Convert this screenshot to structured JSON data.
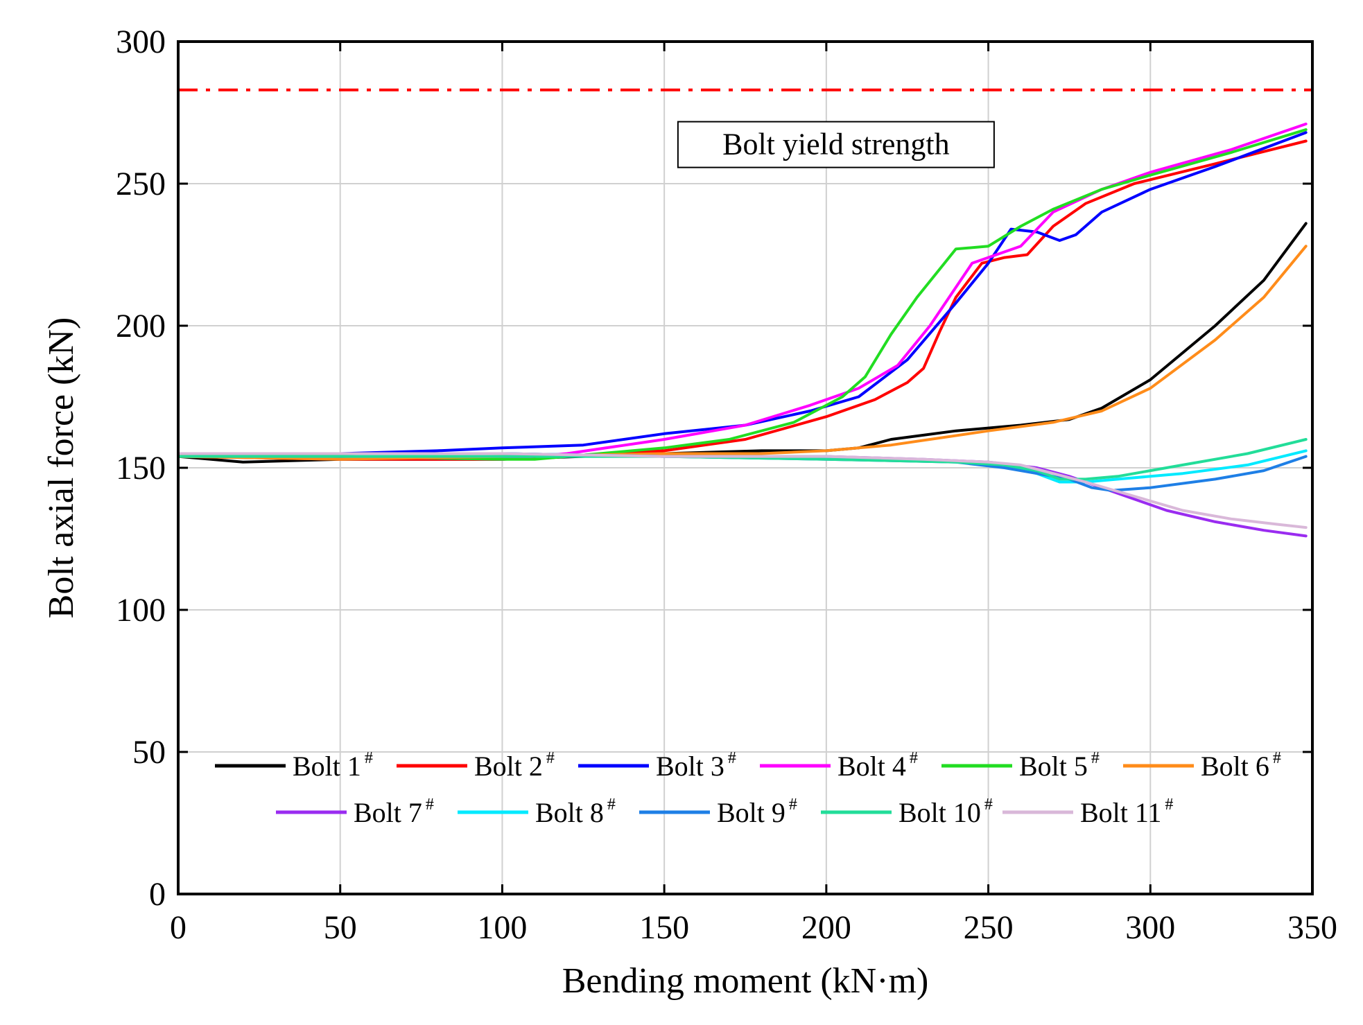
{
  "chart_data": {
    "type": "line",
    "title": "",
    "xlabel": "Bending moment (kN·m)",
    "ylabel": "Bolt axial force (kN)",
    "xlim": [
      0,
      350
    ],
    "ylim": [
      0,
      300
    ],
    "x_ticks": [
      0,
      50,
      100,
      150,
      200,
      250,
      300,
      350
    ],
    "y_ticks": [
      0,
      50,
      100,
      150,
      200,
      250,
      300
    ],
    "grid": true,
    "legend_position": "bottom, two rows",
    "legend_superscript": "#",
    "reference_line": {
      "label": "Bolt yield strength",
      "y": 283,
      "color": "#ff0000",
      "style": "dash-dot"
    },
    "series": [
      {
        "name": "Bolt 1",
        "color": "#000000",
        "points": [
          [
            0,
            154
          ],
          [
            20,
            152
          ],
          [
            50,
            153
          ],
          [
            100,
            153
          ],
          [
            150,
            155
          ],
          [
            180,
            156
          ],
          [
            200,
            156
          ],
          [
            210,
            157
          ],
          [
            220,
            160
          ],
          [
            240,
            163
          ],
          [
            260,
            165
          ],
          [
            275,
            167
          ],
          [
            285,
            171
          ],
          [
            300,
            181
          ],
          [
            320,
            200
          ],
          [
            335,
            216
          ],
          [
            348,
            236
          ]
        ]
      },
      {
        "name": "Bolt 2",
        "color": "#ff0000",
        "points": [
          [
            0,
            154
          ],
          [
            50,
            153
          ],
          [
            100,
            153
          ],
          [
            150,
            156
          ],
          [
            175,
            160
          ],
          [
            200,
            168
          ],
          [
            215,
            174
          ],
          [
            225,
            180
          ],
          [
            230,
            185
          ],
          [
            235,
            198
          ],
          [
            240,
            210
          ],
          [
            248,
            222
          ],
          [
            255,
            224
          ],
          [
            262,
            225
          ],
          [
            270,
            235
          ],
          [
            280,
            243
          ],
          [
            295,
            250
          ],
          [
            320,
            257
          ],
          [
            348,
            265
          ]
        ]
      },
      {
        "name": "Bolt 3",
        "color": "#0000ff",
        "points": [
          [
            0,
            155
          ],
          [
            50,
            155
          ],
          [
            80,
            156
          ],
          [
            100,
            157
          ],
          [
            125,
            158
          ],
          [
            150,
            162
          ],
          [
            175,
            165
          ],
          [
            195,
            170
          ],
          [
            210,
            175
          ],
          [
            225,
            188
          ],
          [
            240,
            208
          ],
          [
            250,
            222
          ],
          [
            257,
            234
          ],
          [
            265,
            233
          ],
          [
            272,
            230
          ],
          [
            277,
            232
          ],
          [
            285,
            240
          ],
          [
            300,
            248
          ],
          [
            320,
            256
          ],
          [
            348,
            268
          ]
        ]
      },
      {
        "name": "Bolt 4",
        "color": "#ff00ff",
        "points": [
          [
            0,
            155
          ],
          [
            50,
            154
          ],
          [
            100,
            153
          ],
          [
            120,
            155
          ],
          [
            150,
            160
          ],
          [
            175,
            165
          ],
          [
            195,
            172
          ],
          [
            210,
            178
          ],
          [
            222,
            186
          ],
          [
            232,
            200
          ],
          [
            245,
            222
          ],
          [
            260,
            228
          ],
          [
            270,
            240
          ],
          [
            285,
            248
          ],
          [
            300,
            254
          ],
          [
            325,
            262
          ],
          [
            348,
            271
          ]
        ]
      },
      {
        "name": "Bolt 5",
        "color": "#22dd22",
        "points": [
          [
            0,
            154
          ],
          [
            50,
            154
          ],
          [
            100,
            153
          ],
          [
            110,
            153
          ],
          [
            130,
            155
          ],
          [
            150,
            157
          ],
          [
            170,
            160
          ],
          [
            190,
            166
          ],
          [
            205,
            175
          ],
          [
            212,
            182
          ],
          [
            220,
            197
          ],
          [
            228,
            210
          ],
          [
            240,
            227
          ],
          [
            250,
            228
          ],
          [
            260,
            235
          ],
          [
            270,
            241
          ],
          [
            285,
            248
          ],
          [
            300,
            253
          ],
          [
            325,
            261
          ],
          [
            348,
            269
          ]
        ]
      },
      {
        "name": "Bolt 6",
        "color": "#ff8c1a",
        "points": [
          [
            0,
            154
          ],
          [
            50,
            153
          ],
          [
            100,
            154
          ],
          [
            150,
            155
          ],
          [
            180,
            155
          ],
          [
            200,
            156
          ],
          [
            210,
            157
          ],
          [
            220,
            158
          ],
          [
            250,
            163
          ],
          [
            270,
            166
          ],
          [
            285,
            170
          ],
          [
            300,
            178
          ],
          [
            320,
            195
          ],
          [
            335,
            210
          ],
          [
            348,
            228
          ]
        ]
      },
      {
        "name": "Bolt 7",
        "color": "#9a2cf0",
        "points": [
          [
            0,
            155
          ],
          [
            50,
            155
          ],
          [
            100,
            155
          ],
          [
            150,
            154
          ],
          [
            200,
            154
          ],
          [
            230,
            153
          ],
          [
            250,
            152
          ],
          [
            258,
            151
          ],
          [
            265,
            150
          ],
          [
            275,
            147
          ],
          [
            285,
            143
          ],
          [
            295,
            139
          ],
          [
            305,
            135
          ],
          [
            320,
            131
          ],
          [
            335,
            128
          ],
          [
            348,
            126
          ]
        ]
      },
      {
        "name": "Bolt 8",
        "color": "#00eaff",
        "points": [
          [
            0,
            155
          ],
          [
            50,
            155
          ],
          [
            100,
            155
          ],
          [
            150,
            154
          ],
          [
            200,
            154
          ],
          [
            240,
            152
          ],
          [
            255,
            151
          ],
          [
            265,
            148
          ],
          [
            272,
            145
          ],
          [
            280,
            145
          ],
          [
            290,
            146
          ],
          [
            310,
            148
          ],
          [
            330,
            151
          ],
          [
            348,
            156
          ]
        ]
      },
      {
        "name": "Bolt 9",
        "color": "#1e7fe6",
        "points": [
          [
            0,
            155
          ],
          [
            50,
            155
          ],
          [
            100,
            155
          ],
          [
            150,
            154
          ],
          [
            200,
            153
          ],
          [
            240,
            152
          ],
          [
            255,
            150
          ],
          [
            265,
            148
          ],
          [
            275,
            146
          ],
          [
            282,
            143
          ],
          [
            288,
            142
          ],
          [
            300,
            143
          ],
          [
            320,
            146
          ],
          [
            335,
            149
          ],
          [
            348,
            154
          ]
        ]
      },
      {
        "name": "Bolt 10",
        "color": "#22dd99",
        "points": [
          [
            0,
            154
          ],
          [
            50,
            154
          ],
          [
            100,
            154
          ],
          [
            150,
            154
          ],
          [
            200,
            153
          ],
          [
            240,
            152
          ],
          [
            255,
            151
          ],
          [
            265,
            149
          ],
          [
            272,
            146
          ],
          [
            280,
            146
          ],
          [
            290,
            147
          ],
          [
            310,
            151
          ],
          [
            330,
            155
          ],
          [
            348,
            160
          ]
        ]
      },
      {
        "name": "Bolt 11",
        "color": "#d9b8d9",
        "points": [
          [
            0,
            155
          ],
          [
            50,
            155
          ],
          [
            100,
            155
          ],
          [
            150,
            154
          ],
          [
            200,
            154
          ],
          [
            230,
            153
          ],
          [
            250,
            152
          ],
          [
            260,
            151
          ],
          [
            270,
            148
          ],
          [
            280,
            145
          ],
          [
            295,
            140
          ],
          [
            310,
            135
          ],
          [
            325,
            132
          ],
          [
            340,
            130
          ],
          [
            348,
            129
          ]
        ]
      }
    ]
  }
}
